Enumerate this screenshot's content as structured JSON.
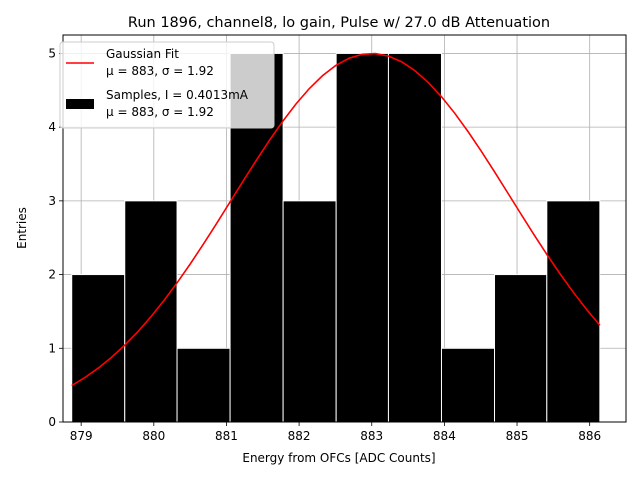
{
  "chart_data": {
    "type": "bar",
    "title": "Run 1896, channel8, lo gain, Pulse w/ 27.0 dB Attenuation",
    "xlabel": "Energy from OFCs [ADC Counts]",
    "ylabel": "Entries",
    "xlim": [
      878.75,
      886.5
    ],
    "ylim": [
      0,
      5.25
    ],
    "grid": true,
    "x_ticks": [
      "879",
      "880",
      "881",
      "882",
      "883",
      "884",
      "885",
      "886"
    ],
    "y_ticks": [
      "0",
      "1",
      "2",
      "3",
      "4",
      "5"
    ],
    "bins": {
      "edges": [
        878.87,
        879.6,
        880.32,
        881.05,
        881.78,
        882.51,
        883.23,
        883.96,
        884.69,
        885.41,
        886.14
      ],
      "counts": [
        2,
        3,
        1,
        5,
        3,
        5,
        5,
        1,
        2,
        3
      ]
    },
    "fit": {
      "mu": 883,
      "sigma": 1.92,
      "amplitude": 5,
      "x_range": [
        878.87,
        886.14
      ]
    },
    "legend": {
      "position": "top-left",
      "entries": [
        {
          "line1": "Gaussian Fit",
          "line2_mu": "μ = 883, ",
          "line2_sigma": "σ = 1.92"
        },
        {
          "line1": "Samples, I = 0.4013mA",
          "line2_mu": "μ = 883, ",
          "line2_sigma": "σ = 1.92"
        }
      ]
    },
    "colors": {
      "bars": "#000000",
      "bar_edge": "#ffffff",
      "fit": "#ff0000",
      "grid": "#b0b0b0"
    }
  }
}
